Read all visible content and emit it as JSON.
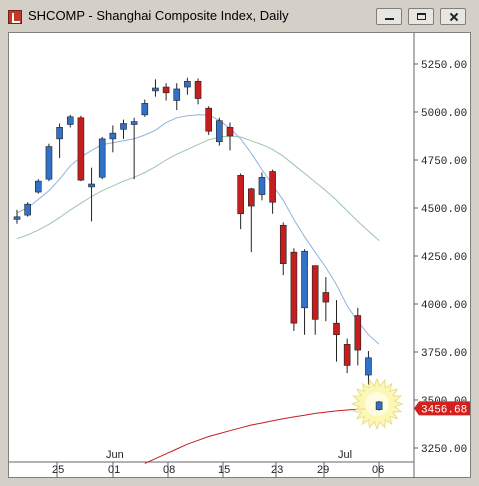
{
  "window": {
    "title": "SHCOMP - Shanghai Composite Index, Daily"
  },
  "colors": {
    "up": "#2f72c8",
    "down": "#c41e1e",
    "ma_fast": "#8fb4dd",
    "ma_slow": "#9dc5a9",
    "ma_long": "#c41e1e",
    "price_label_bg": "#d41f1f"
  },
  "chart_data": {
    "type": "candlestick",
    "ylim": [
      3150,
      5350
    ],
    "y_ticks": [
      "5250.00",
      "5000.00",
      "4750.00",
      "4500.00",
      "4250.00",
      "4000.00",
      "3750.00",
      "3500.00",
      "3250.00"
    ],
    "x_ticks": [
      "25",
      "Jun",
      "01",
      "08",
      "15",
      "23",
      "29",
      "Jul",
      "06"
    ],
    "last_price": "3456.68",
    "candles": [
      {
        "o": 4441,
        "h": 4490,
        "l": 4418,
        "c": 4454
      },
      {
        "o": 4463,
        "h": 4530,
        "l": 4455,
        "c": 4520
      },
      {
        "o": 4583,
        "h": 4650,
        "l": 4575,
        "c": 4640
      },
      {
        "o": 4650,
        "h": 4835,
        "l": 4640,
        "c": 4820
      },
      {
        "o": 4860,
        "h": 4940,
        "l": 4760,
        "c": 4920
      },
      {
        "o": 4935,
        "h": 4985,
        "l": 4920,
        "c": 4975
      },
      {
        "o": 4970,
        "h": 4980,
        "l": 4640,
        "c": 4645
      },
      {
        "o": 4610,
        "h": 4710,
        "l": 4430,
        "c": 4625
      },
      {
        "o": 4660,
        "h": 4870,
        "l": 4650,
        "c": 4860
      },
      {
        "o": 4860,
        "h": 4930,
        "l": 4790,
        "c": 4890
      },
      {
        "o": 4910,
        "h": 4960,
        "l": 4860,
        "c": 4940
      },
      {
        "o": 4935,
        "h": 4970,
        "l": 4650,
        "c": 4950
      },
      {
        "o": 4985,
        "h": 5065,
        "l": 4975,
        "c": 5045
      },
      {
        "o": 5110,
        "h": 5170,
        "l": 5080,
        "c": 5125
      },
      {
        "o": 5130,
        "h": 5150,
        "l": 5060,
        "c": 5100
      },
      {
        "o": 5060,
        "h": 5150,
        "l": 5010,
        "c": 5120
      },
      {
        "o": 5130,
        "h": 5178,
        "l": 5090,
        "c": 5160
      },
      {
        "o": 5160,
        "h": 5175,
        "l": 5040,
        "c": 5070
      },
      {
        "o": 5020,
        "h": 5030,
        "l": 4880,
        "c": 4900
      },
      {
        "o": 4845,
        "h": 4970,
        "l": 4825,
        "c": 4955
      },
      {
        "o": 4920,
        "h": 4945,
        "l": 4800,
        "c": 4875
      },
      {
        "o": 4670,
        "h": 4680,
        "l": 4390,
        "c": 4470
      },
      {
        "o": 4600,
        "h": 4605,
        "l": 4270,
        "c": 4510
      },
      {
        "o": 4570,
        "h": 4685,
        "l": 4540,
        "c": 4660
      },
      {
        "o": 4690,
        "h": 4700,
        "l": 4470,
        "c": 4530
      },
      {
        "o": 4410,
        "h": 4425,
        "l": 4150,
        "c": 4210
      },
      {
        "o": 4270,
        "h": 4290,
        "l": 3860,
        "c": 3900
      },
      {
        "o": 3980,
        "h": 4285,
        "l": 3840,
        "c": 4275
      },
      {
        "o": 4200,
        "h": 4200,
        "l": 3840,
        "c": 3920
      },
      {
        "o": 4060,
        "h": 4140,
        "l": 3910,
        "c": 4010
      },
      {
        "o": 3900,
        "h": 4020,
        "l": 3700,
        "c": 3840
      },
      {
        "o": 3790,
        "h": 3820,
        "l": 3640,
        "c": 3680
      },
      {
        "o": 3940,
        "h": 3980,
        "l": 3680,
        "c": 3760
      },
      {
        "o": 3630,
        "h": 3755,
        "l": 3580,
        "c": 3720
      },
      {
        "o": 3450,
        "h": 3495,
        "l": 3445,
        "c": 3490
      }
    ],
    "ma_fast": [
      4475,
      4500,
      4545,
      4590,
      4650,
      4720,
      4765,
      4800,
      4830,
      4840,
      4850,
      4860,
      4880,
      4905,
      4945,
      4970,
      4980,
      4985,
      4985,
      4955,
      4915,
      4860,
      4785,
      4700,
      4620,
      4540,
      4440,
      4350,
      4270,
      4190,
      4100,
      3990,
      3910,
      3840,
      3790
    ],
    "ma_slow": [
      4340,
      4360,
      4385,
      4415,
      4450,
      4490,
      4525,
      4560,
      4590,
      4615,
      4640,
      4660,
      4685,
      4715,
      4750,
      4780,
      4805,
      4830,
      4855,
      4870,
      4875,
      4870,
      4850,
      4830,
      4805,
      4770,
      4725,
      4680,
      4635,
      4590,
      4540,
      4485,
      4430,
      4380,
      4330
    ],
    "ma_long": [
      null,
      null,
      null,
      null,
      null,
      null,
      null,
      null,
      null,
      null,
      null,
      null,
      3170,
      3195,
      3220,
      3245,
      3270,
      3290,
      3310,
      3325,
      3340,
      3355,
      3370,
      3380,
      3392,
      3402,
      3412,
      3421,
      3430,
      3437,
      3443,
      3448,
      3452,
      3454,
      3456
    ]
  }
}
